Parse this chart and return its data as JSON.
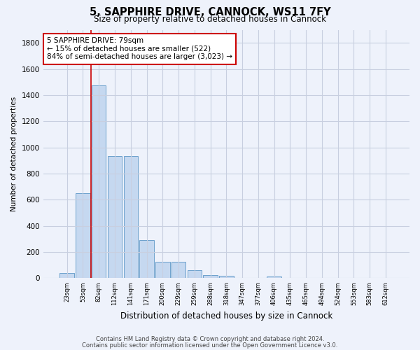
{
  "title1": "5, SAPPHIRE DRIVE, CANNOCK, WS11 7FY",
  "title2": "Size of property relative to detached houses in Cannock",
  "xlabel": "Distribution of detached houses by size in Cannock",
  "ylabel": "Number of detached properties",
  "bar_labels": [
    "23sqm",
    "53sqm",
    "82sqm",
    "112sqm",
    "141sqm",
    "171sqm",
    "200sqm",
    "229sqm",
    "259sqm",
    "288sqm",
    "318sqm",
    "347sqm",
    "377sqm",
    "406sqm",
    "435sqm",
    "465sqm",
    "494sqm",
    "524sqm",
    "553sqm",
    "583sqm",
    "612sqm"
  ],
  "bar_values": [
    38,
    650,
    1475,
    935,
    935,
    290,
    125,
    125,
    62,
    25,
    20,
    0,
    0,
    15,
    0,
    0,
    0,
    0,
    0,
    0,
    0
  ],
  "bar_color": "#c5d8f0",
  "bar_edge_color": "#6ca0cc",
  "vline_x_idx": 1.5,
  "vline_color": "#cc0000",
  "annotation_text": "5 SAPPHIRE DRIVE: 79sqm\n← 15% of detached houses are smaller (522)\n84% of semi-detached houses are larger (3,023) →",
  "annotation_box_color": "#cc0000",
  "ylim": [
    0,
    1900
  ],
  "yticks": [
    0,
    200,
    400,
    600,
    800,
    1000,
    1200,
    1400,
    1600,
    1800
  ],
  "footer1": "Contains HM Land Registry data © Crown copyright and database right 2024.",
  "footer2": "Contains public sector information licensed under the Open Government Licence v3.0.",
  "background_color": "#eef2fb",
  "grid_color": "#c8cfe0"
}
